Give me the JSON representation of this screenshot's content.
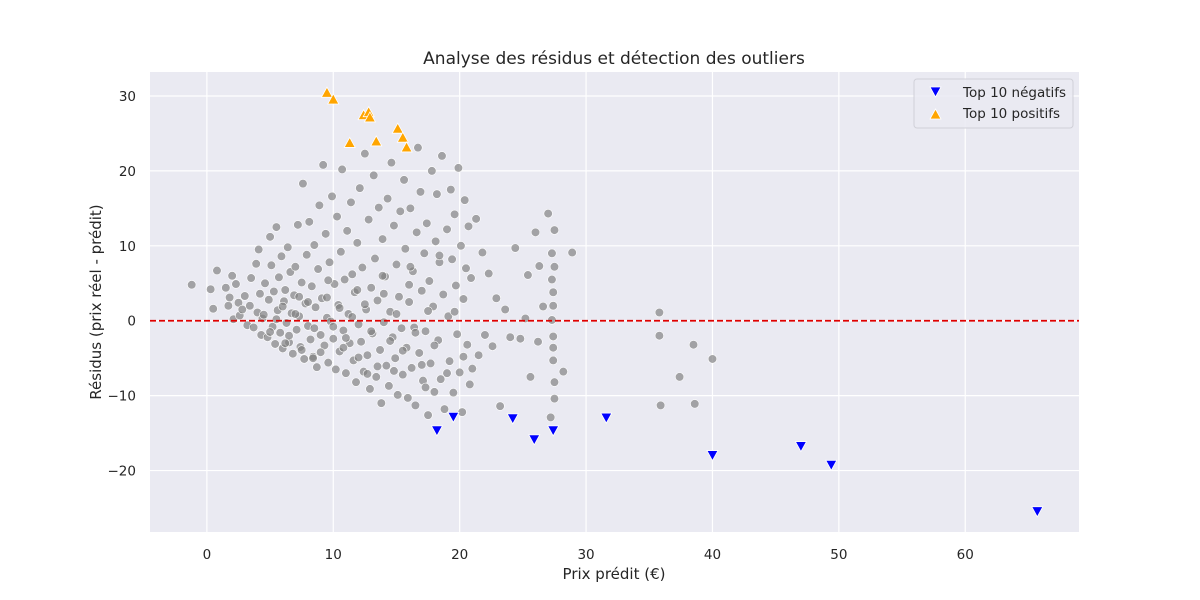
{
  "chart_data": {
    "type": "scatter",
    "title": "Analyse des résidus et détection des outliers",
    "xlabel": "Prix prédit (€)",
    "ylabel": "Résidus (prix réel - prédit)",
    "xlim": [
      -4.5,
      69
    ],
    "ylim": [
      -28.2,
      33.2
    ],
    "x_ticks": [
      0,
      10,
      20,
      30,
      40,
      50,
      60
    ],
    "y_ticks": [
      -20,
      -10,
      0,
      10,
      20,
      30
    ],
    "grid": true,
    "legend_position": "top-right",
    "reference_line": {
      "y": 0,
      "style": "dashed",
      "color": "#e00000"
    },
    "colors": {
      "background": "#eaeaf2",
      "grid": "#ffffff",
      "points": "#808080",
      "negative": "#0000ff",
      "positive": "#ffa500"
    },
    "series": [
      {
        "name": "",
        "marker": "circle",
        "color": "#808080",
        "points": [
          [
            -1.2,
            4.8
          ],
          [
            0.3,
            4.2
          ],
          [
            0.5,
            1.6
          ],
          [
            0.8,
            6.7
          ],
          [
            1.5,
            4.4
          ],
          [
            1.7,
            2.0
          ],
          [
            1.8,
            3.1
          ],
          [
            2.0,
            6.0
          ],
          [
            2.1,
            0.2
          ],
          [
            2.3,
            4.9
          ],
          [
            2.5,
            2.4
          ],
          [
            2.6,
            0.7
          ],
          [
            2.8,
            1.5
          ],
          [
            3.0,
            3.3
          ],
          [
            3.2,
            -0.6
          ],
          [
            3.4,
            2.0
          ],
          [
            3.5,
            5.7
          ],
          [
            3.7,
            -0.9
          ],
          [
            3.9,
            7.6
          ],
          [
            4.0,
            1.1
          ],
          [
            4.1,
            9.5
          ],
          [
            4.2,
            3.6
          ],
          [
            4.3,
            -1.9
          ],
          [
            4.4,
            0.3
          ],
          [
            4.6,
            5.0
          ],
          [
            4.8,
            -2.2
          ],
          [
            4.9,
            2.8
          ],
          [
            5.0,
            11.2
          ],
          [
            5.1,
            7.4
          ],
          [
            5.2,
            -0.8
          ],
          [
            5.3,
            3.9
          ],
          [
            5.4,
            -3.1
          ],
          [
            5.5,
            12.5
          ],
          [
            5.6,
            1.4
          ],
          [
            5.7,
            5.8
          ],
          [
            5.8,
            -1.6
          ],
          [
            5.9,
            8.6
          ],
          [
            6.0,
            -3.7
          ],
          [
            6.1,
            2.6
          ],
          [
            6.2,
            4.1
          ],
          [
            6.3,
            -0.3
          ],
          [
            6.4,
            9.8
          ],
          [
            6.5,
            -2.9
          ],
          [
            6.6,
            6.5
          ],
          [
            6.7,
            1.0
          ],
          [
            6.8,
            -4.4
          ],
          [
            6.9,
            3.4
          ],
          [
            7.0,
            7.2
          ],
          [
            7.1,
            -1.2
          ],
          [
            7.2,
            12.8
          ],
          [
            7.3,
            0.6
          ],
          [
            7.4,
            -3.5
          ],
          [
            7.5,
            5.1
          ],
          [
            7.6,
            18.3
          ],
          [
            7.7,
            -5.1
          ],
          [
            7.8,
            2.3
          ],
          [
            7.9,
            8.8
          ],
          [
            8.0,
            -0.7
          ],
          [
            8.1,
            13.2
          ],
          [
            8.2,
            -2.5
          ],
          [
            8.3,
            4.6
          ],
          [
            8.4,
            -4.8
          ],
          [
            8.5,
            10.1
          ],
          [
            8.6,
            1.8
          ],
          [
            8.7,
            -6.2
          ],
          [
            8.8,
            6.9
          ],
          [
            8.9,
            15.4
          ],
          [
            9.0,
            -1.9
          ],
          [
            9.1,
            3.0
          ],
          [
            9.2,
            20.8
          ],
          [
            9.3,
            -3.3
          ],
          [
            9.4,
            11.6
          ],
          [
            9.5,
            0.4
          ],
          [
            9.6,
            -5.6
          ],
          [
            9.7,
            7.8
          ],
          [
            9.8,
            -0.1
          ],
          [
            9.9,
            16.6
          ],
          [
            10.0,
            -2.4
          ],
          [
            10.1,
            4.9
          ],
          [
            10.2,
            -6.5
          ],
          [
            10.3,
            13.9
          ],
          [
            10.4,
            2.1
          ],
          [
            10.5,
            -4.1
          ],
          [
            10.6,
            9.2
          ],
          [
            10.7,
            20.2
          ],
          [
            10.8,
            -1.3
          ],
          [
            10.9,
            5.5
          ],
          [
            11.0,
            -7.0
          ],
          [
            11.1,
            12.0
          ],
          [
            11.2,
            0.9
          ],
          [
            11.3,
            -3.0
          ],
          [
            11.4,
            15.8
          ],
          [
            11.5,
            6.2
          ],
          [
            11.6,
            -5.3
          ],
          [
            11.7,
            3.8
          ],
          [
            11.8,
            -8.2
          ],
          [
            11.9,
            10.4
          ],
          [
            12.0,
            -0.5
          ],
          [
            12.1,
            17.7
          ],
          [
            12.2,
            -2.8
          ],
          [
            12.3,
            7.1
          ],
          [
            12.4,
            -6.8
          ],
          [
            12.5,
            22.3
          ],
          [
            12.6,
            1.5
          ],
          [
            12.7,
            -4.6
          ],
          [
            12.8,
            13.5
          ],
          [
            12.9,
            -9.1
          ],
          [
            13.0,
            4.4
          ],
          [
            13.1,
            -1.7
          ],
          [
            13.2,
            19.4
          ],
          [
            13.3,
            8.3
          ],
          [
            13.4,
            -7.5
          ],
          [
            13.5,
            2.7
          ],
          [
            13.6,
            15.1
          ],
          [
            13.7,
            -3.9
          ],
          [
            13.8,
            -11.0
          ],
          [
            13.9,
            10.9
          ],
          [
            14.0,
            -0.2
          ],
          [
            14.1,
            5.9
          ],
          [
            14.2,
            -6.0
          ],
          [
            14.3,
            16.3
          ],
          [
            14.4,
            -8.7
          ],
          [
            14.5,
            1.2
          ],
          [
            14.6,
            21.1
          ],
          [
            14.7,
            -2.2
          ],
          [
            14.8,
            12.7
          ],
          [
            14.9,
            -5.0
          ],
          [
            15.0,
            7.5
          ],
          [
            15.1,
            -9.9
          ],
          [
            15.2,
            3.2
          ],
          [
            15.3,
            14.6
          ],
          [
            15.4,
            -1.0
          ],
          [
            15.5,
            -7.2
          ],
          [
            15.6,
            18.8
          ],
          [
            15.7,
            9.6
          ],
          [
            15.8,
            -3.6
          ],
          [
            15.9,
            -10.3
          ],
          [
            16.0,
            2.5
          ],
          [
            16.1,
            15.0
          ],
          [
            16.2,
            -6.3
          ],
          [
            16.3,
            6.6
          ],
          [
            16.4,
            -0.9
          ],
          [
            16.5,
            -11.3
          ],
          [
            16.6,
            11.8
          ],
          [
            16.7,
            23.1
          ],
          [
            16.8,
            -4.3
          ],
          [
            16.9,
            17.2
          ],
          [
            17.0,
            4.0
          ],
          [
            17.1,
            -8.0
          ],
          [
            17.2,
            9.0
          ],
          [
            17.3,
            -1.4
          ],
          [
            17.4,
            13.0
          ],
          [
            17.5,
            -12.6
          ],
          [
            17.6,
            5.3
          ],
          [
            17.7,
            -5.7
          ],
          [
            17.8,
            20.0
          ],
          [
            17.9,
            1.9
          ],
          [
            18.0,
            -9.5
          ],
          [
            18.1,
            10.6
          ],
          [
            18.2,
            16.9
          ],
          [
            18.3,
            -2.6
          ],
          [
            18.4,
            7.8
          ],
          [
            18.5,
            -7.8
          ],
          [
            18.6,
            22.0
          ],
          [
            18.7,
            3.5
          ],
          [
            18.8,
            -11.8
          ],
          [
            19.0,
            12.2
          ],
          [
            19.1,
            0.6
          ],
          [
            19.2,
            -5.4
          ],
          [
            19.3,
            17.5
          ],
          [
            19.4,
            8.2
          ],
          [
            19.5,
            -9.6
          ],
          [
            19.6,
            14.2
          ],
          [
            19.7,
            4.7
          ],
          [
            19.8,
            -1.8
          ],
          [
            19.9,
            20.4
          ],
          [
            20.0,
            -6.9
          ],
          [
            20.1,
            10.0
          ],
          [
            20.2,
            -12.2
          ],
          [
            20.3,
            2.9
          ],
          [
            20.4,
            16.1
          ],
          [
            20.5,
            7.0
          ],
          [
            20.6,
            -3.2
          ],
          [
            20.7,
            12.6
          ],
          [
            20.8,
            -8.5
          ],
          [
            20.9,
            5.7
          ],
          [
            21.0,
            -6.4
          ],
          [
            21.3,
            13.6
          ],
          [
            21.5,
            -4.6
          ],
          [
            21.8,
            9.1
          ],
          [
            22.0,
            -1.9
          ],
          [
            22.3,
            6.3
          ],
          [
            22.6,
            -3.4
          ],
          [
            22.9,
            3.0
          ],
          [
            23.2,
            -11.4
          ],
          [
            23.6,
            1.5
          ],
          [
            24.0,
            -2.2
          ],
          [
            24.4,
            9.7
          ],
          [
            24.8,
            -2.4
          ],
          [
            25.2,
            0.3
          ],
          [
            25.6,
            -7.5
          ],
          [
            26.0,
            11.8
          ],
          [
            26.3,
            7.3
          ],
          [
            26.6,
            1.9
          ],
          [
            27.0,
            14.3
          ],
          [
            27.2,
            -12.9
          ],
          [
            27.3,
            9.0
          ],
          [
            27.3,
            5.5
          ],
          [
            27.4,
            2.0
          ],
          [
            27.4,
            -2.1
          ],
          [
            27.4,
            -5.3
          ],
          [
            27.5,
            -8.2
          ],
          [
            27.5,
            -10.4
          ],
          [
            27.5,
            12.1
          ],
          [
            27.3,
            0.1
          ],
          [
            27.4,
            -3.6
          ],
          [
            27.4,
            3.8
          ],
          [
            27.5,
            7.2
          ],
          [
            28.2,
            -6.8
          ],
          [
            28.9,
            9.1
          ],
          [
            35.8,
            1.1
          ],
          [
            35.8,
            -2.0
          ],
          [
            35.9,
            -11.3
          ],
          [
            37.4,
            -7.5
          ],
          [
            38.5,
            -3.2
          ],
          [
            38.6,
            -11.1
          ],
          [
            40.0,
            -5.1
          ],
          [
            4.5,
            0.8
          ],
          [
            5.0,
            -1.5
          ],
          [
            5.5,
            0.2
          ],
          [
            6.0,
            1.9
          ],
          [
            6.5,
            -2.0
          ],
          [
            7.0,
            0.9
          ],
          [
            7.5,
            -3.9
          ],
          [
            8.0,
            2.5
          ],
          [
            8.5,
            -1.0
          ],
          [
            9.0,
            -4.2
          ],
          [
            9.5,
            3.1
          ],
          [
            10.0,
            -0.8
          ],
          [
            10.5,
            1.7
          ],
          [
            11.0,
            -2.3
          ],
          [
            11.5,
            0.5
          ],
          [
            12.0,
            -4.9
          ],
          [
            12.5,
            2.2
          ],
          [
            13.0,
            -1.4
          ],
          [
            13.5,
            -6.1
          ],
          [
            14.0,
            3.6
          ],
          [
            14.5,
            -2.7
          ],
          [
            15.0,
            0.9
          ],
          [
            15.5,
            -4.0
          ],
          [
            16.0,
            4.8
          ],
          [
            16.5,
            -1.6
          ],
          [
            17.0,
            -5.9
          ],
          [
            17.5,
            1.3
          ],
          [
            18.0,
            -3.3
          ],
          [
            6.2,
            -3.0
          ],
          [
            7.3,
            3.2
          ],
          [
            8.4,
            -5.0
          ],
          [
            9.6,
            5.4
          ],
          [
            10.8,
            -3.6
          ],
          [
            11.9,
            4.1
          ],
          [
            12.7,
            -7.1
          ],
          [
            13.9,
            6.0
          ],
          [
            14.8,
            -6.7
          ],
          [
            16.1,
            7.2
          ],
          [
            17.3,
            -8.9
          ],
          [
            18.4,
            8.7
          ],
          [
            19.0,
            -7.0
          ],
          [
            19.6,
            1.2
          ],
          [
            20.3,
            -4.8
          ],
          [
            26.2,
            -2.8
          ],
          [
            25.4,
            6.1
          ]
        ]
      },
      {
        "name": "Top 10 négatifs",
        "marker": "triangle-down",
        "color": "#0000ff",
        "points": [
          [
            18.2,
            -14.7
          ],
          [
            19.5,
            -12.9
          ],
          [
            24.2,
            -13.1
          ],
          [
            25.9,
            -15.9
          ],
          [
            27.4,
            -14.7
          ],
          [
            31.6,
            -13.0
          ],
          [
            40.0,
            -18.0
          ],
          [
            47.0,
            -16.8
          ],
          [
            49.4,
            -19.3
          ],
          [
            65.7,
            -25.5
          ]
        ]
      },
      {
        "name": "Top 10 positifs",
        "marker": "triangle-up",
        "color": "#ffa500",
        "points": [
          [
            9.5,
            30.5
          ],
          [
            10.0,
            29.6
          ],
          [
            11.3,
            23.8
          ],
          [
            12.4,
            27.5
          ],
          [
            12.8,
            27.9
          ],
          [
            12.9,
            27.2
          ],
          [
            13.4,
            24.0
          ],
          [
            15.1,
            25.7
          ],
          [
            15.5,
            24.5
          ],
          [
            15.8,
            23.2
          ]
        ]
      }
    ]
  }
}
